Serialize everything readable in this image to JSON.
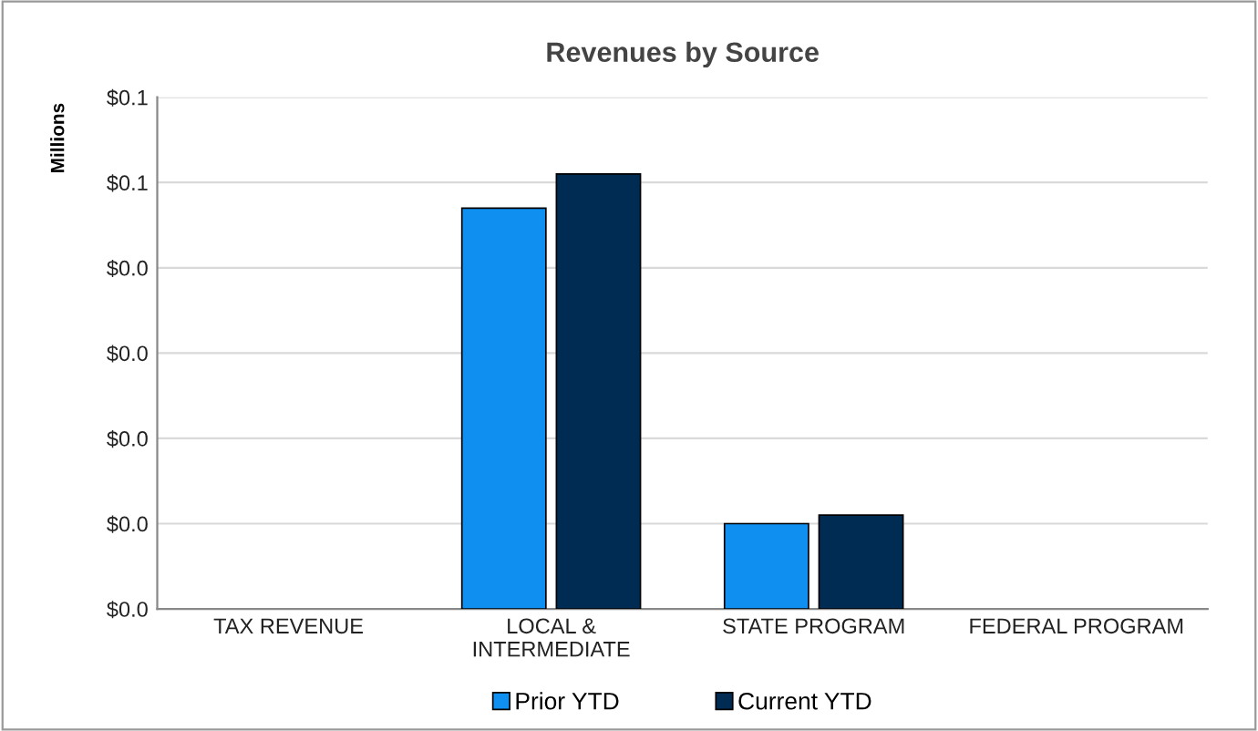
{
  "chart_data": {
    "type": "bar",
    "title": "Revenues by Source",
    "ylabel": "Millions",
    "categories": [
      "TAX REVENUE",
      "LOCAL & INTERMEDIATE",
      "STATE PROGRAM",
      "FEDERAL PROGRAM"
    ],
    "series": [
      {
        "name": "Prior YTD",
        "color": "#0f8ff0",
        "values": [
          0,
          0.047,
          0.01,
          0
        ]
      },
      {
        "name": "Current YTD",
        "color": "#002b52",
        "values": [
          0,
          0.051,
          0.011,
          0
        ]
      }
    ],
    "ylim": [
      0,
      0.06
    ],
    "yticks": [
      {
        "value": 0,
        "label": "$0.0"
      },
      {
        "value": 0.01,
        "label": "$0.0"
      },
      {
        "value": 0.02,
        "label": "$0.0"
      },
      {
        "value": 0.03,
        "label": "$0.0"
      },
      {
        "value": 0.04,
        "label": "$0.0"
      },
      {
        "value": 0.05,
        "label": "$0.1"
      },
      {
        "value": 0.06,
        "label": "$0.1"
      }
    ],
    "grid": "y",
    "legend": "bottom"
  }
}
